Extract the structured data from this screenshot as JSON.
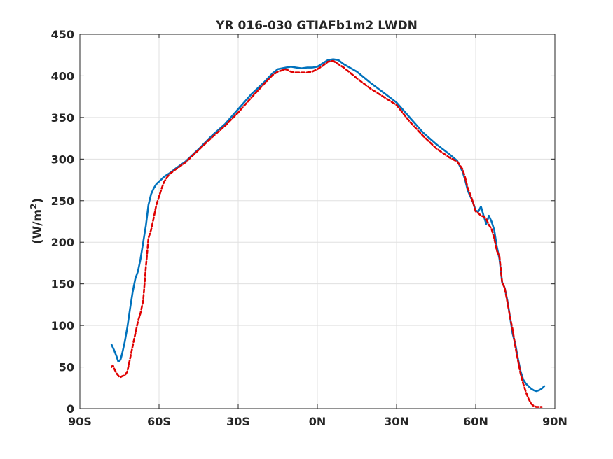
{
  "chart_data": {
    "type": "line",
    "title": "YR 016-030 GTIAFb1m2 LWDN",
    "ylabel_main": "(W/m",
    "ylabel_sup": "2",
    "ylabel_end": ")",
    "xlabel": "",
    "xlim": [
      -90,
      90
    ],
    "ylim": [
      0,
      450
    ],
    "grid": true,
    "x_ticks": [
      -90,
      -60,
      -30,
      0,
      30,
      60,
      90
    ],
    "x_tick_labels": [
      "90S",
      "60S",
      "30S",
      "0N",
      "30N",
      "60N",
      "90N"
    ],
    "y_ticks": [
      0,
      50,
      100,
      150,
      200,
      250,
      300,
      350,
      400,
      450
    ],
    "y_tick_labels": [
      "0",
      "50",
      "100",
      "150",
      "200",
      "250",
      "300",
      "350",
      "400",
      "450"
    ],
    "series": [
      {
        "color": "#0072BD",
        "style": "solid",
        "x": [
          -78,
          -77,
          -76,
          -75.5,
          -75,
          -74.5,
          -74,
          -73,
          -72,
          -71,
          -70,
          -69,
          -68,
          -67,
          -66,
          -65,
          -64,
          -63,
          -62,
          -61,
          -60,
          -59,
          -58,
          -57,
          -56,
          -54,
          -50,
          -45,
          -40,
          -35,
          -30,
          -25,
          -20,
          -17,
          -15,
          -12,
          -10,
          -8,
          -6,
          -4,
          -2,
          0,
          2,
          4,
          6,
          8,
          10,
          15,
          20,
          25,
          30,
          35,
          40,
          45,
          50,
          53,
          55,
          56,
          57,
          58,
          59,
          60,
          61,
          62,
          63,
          64,
          65,
          66,
          67,
          68,
          69,
          70,
          71,
          72,
          73,
          74,
          75,
          76,
          77,
          78,
          79,
          80,
          81,
          82,
          83,
          84,
          85,
          86
        ],
        "y": [
          77,
          70,
          62,
          57,
          57,
          60,
          66,
          80,
          98,
          120,
          140,
          156,
          165,
          180,
          200,
          220,
          245,
          258,
          265,
          270,
          273,
          276,
          279,
          281,
          283,
          288,
          297,
          312,
          328,
          342,
          360,
          378,
          393,
          403,
          408,
          410,
          411,
          410,
          409,
          410,
          410,
          411,
          415,
          419,
          420,
          419,
          414,
          405,
          392,
          380,
          368,
          350,
          332,
          318,
          306,
          298,
          285,
          275,
          262,
          255,
          248,
          238,
          237,
          243,
          232,
          222,
          232,
          225,
          215,
          195,
          180,
          152,
          145,
          130,
          110,
          90,
          78,
          60,
          45,
          35,
          30,
          27,
          24,
          22,
          21,
          22,
          24,
          27
        ]
      },
      {
        "color": "#E00000",
        "style": "dashed",
        "x": [
          -78,
          -77.5,
          -77,
          -76.5,
          -76,
          -75,
          -74.5,
          -74,
          -73,
          -72.5,
          -72,
          -71,
          -70,
          -69,
          -68,
          -67,
          -66,
          -65,
          -64,
          -63,
          -62,
          -61,
          -60,
          -59,
          -58,
          -57,
          -56,
          -54,
          -50,
          -45,
          -40,
          -35,
          -30,
          -25,
          -20,
          -17,
          -15,
          -12,
          -10,
          -8,
          -6,
          -4,
          -2,
          0,
          2,
          4,
          6,
          8,
          10,
          15,
          20,
          25,
          30,
          35,
          40,
          45,
          50,
          53,
          55,
          56,
          57,
          58,
          59,
          60,
          61,
          62,
          63,
          64,
          65,
          66,
          67,
          68,
          69,
          70,
          71,
          72,
          73,
          74,
          75,
          76,
          77,
          78,
          79,
          80,
          81,
          82,
          83,
          84,
          85
        ],
        "y": [
          50,
          52,
          48,
          45,
          42,
          38,
          38,
          39,
          40,
          42,
          45,
          60,
          75,
          90,
          105,
          115,
          130,
          170,
          205,
          215,
          230,
          245,
          255,
          265,
          273,
          278,
          282,
          287,
          296,
          311,
          326,
          340,
          356,
          374,
          391,
          401,
          405,
          408,
          405,
          404,
          404,
          404,
          405,
          408,
          412,
          417,
          418,
          414,
          410,
          397,
          385,
          375,
          365,
          345,
          328,
          313,
          302,
          297,
          288,
          278,
          265,
          257,
          248,
          237,
          235,
          232,
          231,
          228,
          221,
          216,
          205,
          190,
          183,
          152,
          145,
          128,
          110,
          95,
          75,
          58,
          42,
          30,
          20,
          12,
          6,
          3,
          2,
          2,
          2
        ]
      }
    ]
  }
}
